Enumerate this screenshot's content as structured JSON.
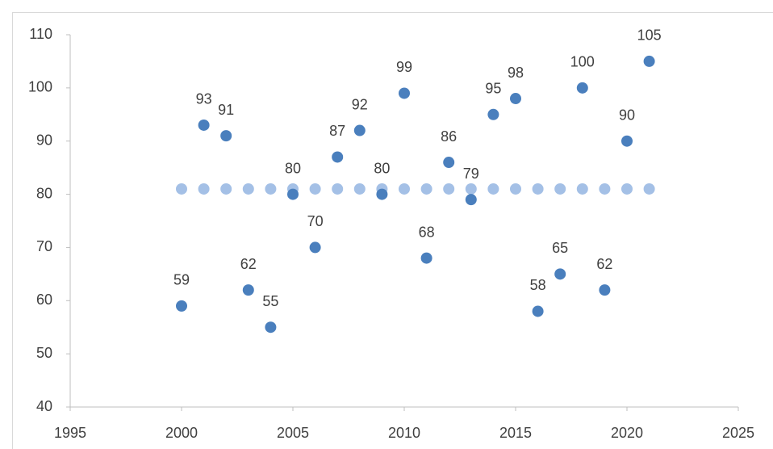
{
  "chart_data": {
    "type": "scatter",
    "x": [
      2000,
      2001,
      2002,
      2003,
      2004,
      2005,
      2006,
      2007,
      2008,
      2009,
      2010,
      2011,
      2012,
      2013,
      2014,
      2015,
      2016,
      2017,
      2018,
      2019,
      2020,
      2021
    ],
    "series": [
      {
        "color": "#4a7fbd",
        "values": [
          59,
          93,
          91,
          62,
          55,
          80,
          70,
          87,
          92,
          80,
          99,
          68,
          86,
          79,
          95,
          98,
          58,
          65,
          100,
          62,
          90,
          105
        ],
        "data_labels": true
      },
      {
        "color": "#a4c0e6",
        "values": [
          81,
          81,
          81,
          81,
          81,
          81,
          81,
          81,
          81,
          81,
          81,
          81,
          81,
          81,
          81,
          81,
          81,
          81,
          81,
          81,
          81,
          81
        ],
        "data_labels": false
      }
    ],
    "xlim": [
      1995,
      2025
    ],
    "xticks": [
      1995,
      2000,
      2005,
      2010,
      2015,
      2020,
      2025
    ],
    "ylim": [
      40,
      110
    ],
    "yticks": [
      40,
      50,
      60,
      70,
      80,
      90,
      100,
      110
    ],
    "grid": false
  }
}
